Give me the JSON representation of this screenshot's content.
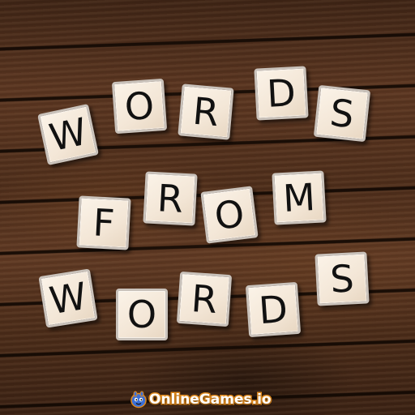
{
  "title_rows": [
    {
      "name": "row-words-top",
      "tiles": [
        {
          "letter": "W",
          "name": "tile-w1"
        },
        {
          "letter": "O",
          "name": "tile-o1"
        },
        {
          "letter": "R",
          "name": "tile-r1"
        },
        {
          "letter": "D",
          "name": "tile-d1"
        },
        {
          "letter": "S",
          "name": "tile-s1"
        }
      ]
    },
    {
      "name": "row-from",
      "tiles": [
        {
          "letter": "F",
          "name": "tile-f"
        },
        {
          "letter": "R",
          "name": "tile-r2"
        },
        {
          "letter": "O",
          "name": "tile-o2"
        },
        {
          "letter": "M",
          "name": "tile-m"
        }
      ]
    },
    {
      "name": "row-words-bottom",
      "tiles": [
        {
          "letter": "W",
          "name": "tile-w2"
        },
        {
          "letter": "O",
          "name": "tile-o3"
        },
        {
          "letter": "R",
          "name": "tile-r3"
        },
        {
          "letter": "D",
          "name": "tile-d2"
        },
        {
          "letter": "S",
          "name": "tile-s2"
        }
      ]
    }
  ],
  "branding": {
    "logo_text": "OnlineGames.io",
    "mascot_icon": "blue-creature-mascot-icon",
    "accent_color": "#e08a1e",
    "mascot_color": "#3b6fd6"
  },
  "colors": {
    "tile_face": "#f6eadb",
    "tile_border": "#c9c2bb",
    "letter": "#111111",
    "wood": "#4d2d1a"
  }
}
